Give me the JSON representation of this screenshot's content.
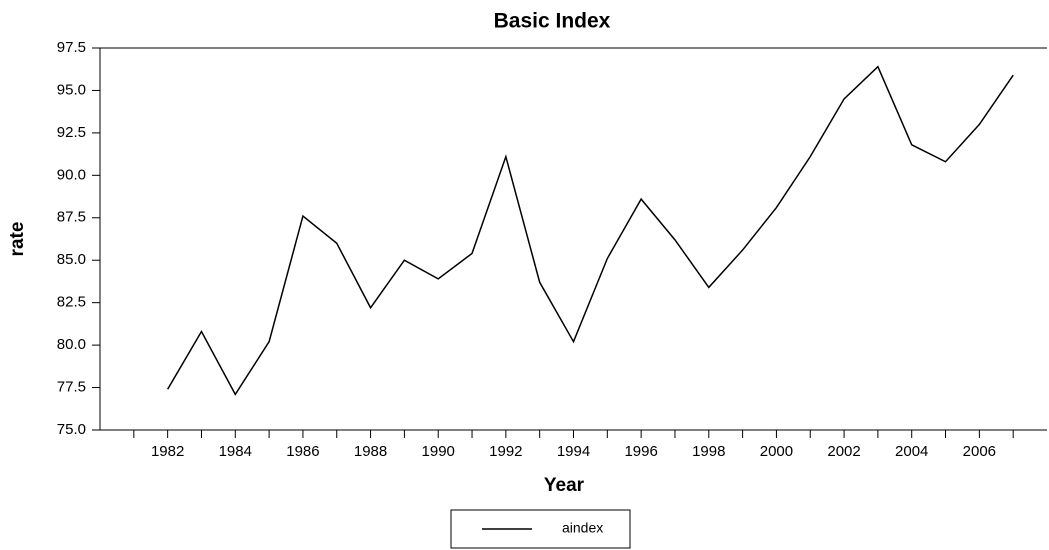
{
  "chart_data": {
    "type": "line",
    "title": "Basic Index",
    "xlabel": "Year",
    "ylabel": "rate",
    "x": [
      1982,
      1983,
      1984,
      1985,
      1986,
      1987,
      1988,
      1989,
      1990,
      1991,
      1992,
      1993,
      1994,
      1995,
      1996,
      1997,
      1998,
      1999,
      2000,
      2001,
      2002,
      2003,
      2004,
      2005,
      2006,
      2007
    ],
    "series": [
      {
        "name": "aindex",
        "color": "#000000",
        "values": [
          77.4,
          80.8,
          77.1,
          80.2,
          87.6,
          86.0,
          82.2,
          85.0,
          83.9,
          85.4,
          91.1,
          83.7,
          80.2,
          85.1,
          88.6,
          86.2,
          83.4,
          85.6,
          88.1,
          91.1,
          94.5,
          96.4,
          91.8,
          90.8,
          93.0,
          95.9
        ]
      }
    ],
    "xlim": [
      1980,
      2008
    ],
    "xticks": [
      1982,
      1984,
      1986,
      1988,
      1990,
      1992,
      1994,
      1996,
      1998,
      2000,
      2002,
      2004,
      2006
    ],
    "xminor_ticks": [
      1981,
      1983,
      1985,
      1987,
      1989,
      1991,
      1993,
      1995,
      1997,
      1999,
      2001,
      2003,
      2005,
      2007
    ],
    "ylim": [
      75,
      97.5
    ],
    "yticks": [
      {
        "value": 75,
        "label": "75.0"
      },
      77.5,
      {
        "value": 80,
        "label": "80.0"
      },
      82.5,
      {
        "value": 85,
        "label": "85.0"
      },
      87.5,
      {
        "value": 90,
        "label": "90.0"
      },
      92.5,
      {
        "value": 95,
        "label": "95.0"
      },
      97.5
    ],
    "legend": "bottom"
  }
}
